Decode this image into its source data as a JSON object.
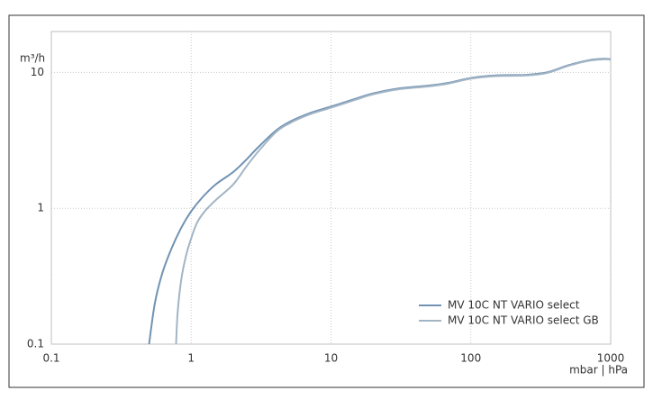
{
  "chart_data": {
    "type": "line",
    "log_x": true,
    "log_y": true,
    "grid": true,
    "legend": "lower right",
    "y_label": "m³/h",
    "x_label": "mbar | hPa",
    "xlim": [
      0.1,
      1000
    ],
    "xticks": [
      0.1,
      1,
      10,
      100,
      1000
    ],
    "ylim": [
      0.1,
      20
    ],
    "yticks": [
      0.1,
      1,
      10
    ],
    "series": [
      {
        "name": "MV 10C NT VARIO select",
        "color": "#7193b3",
        "x": [
          0.5,
          0.55,
          0.62,
          0.72,
          0.85,
          1,
          1.2,
          1.5,
          2,
          2.5,
          3,
          4,
          5,
          7,
          10,
          15,
          20,
          30,
          50,
          70,
          100,
          150,
          250,
          350,
          500,
          700,
          900,
          1000
        ],
        "values": [
          0.1,
          0.2,
          0.33,
          0.5,
          0.72,
          0.95,
          1.2,
          1.5,
          1.85,
          2.3,
          2.8,
          3.7,
          4.3,
          5,
          5.6,
          6.4,
          7,
          7.6,
          8,
          8.4,
          9.1,
          9.5,
          9.6,
          10,
          11.3,
          12.3,
          12.6,
          12.5
        ]
      },
      {
        "name": "MV 10C NT VARIO select GB",
        "color": "#a3b5c5",
        "x": [
          0.78,
          0.8,
          0.85,
          0.92,
          1,
          1.1,
          1.25,
          1.5,
          2,
          2.5,
          3,
          4,
          5,
          7,
          10,
          15,
          20,
          30,
          50,
          70,
          100,
          150,
          250,
          350,
          500,
          700,
          900,
          1000
        ],
        "values": [
          0.1,
          0.17,
          0.3,
          0.45,
          0.6,
          0.78,
          0.95,
          1.15,
          1.5,
          2.05,
          2.6,
          3.6,
          4.2,
          4.9,
          5.5,
          6.3,
          6.9,
          7.5,
          7.9,
          8.3,
          9,
          9.4,
          9.5,
          9.9,
          11.2,
          12.2,
          12.5,
          12.4
        ]
      }
    ]
  }
}
